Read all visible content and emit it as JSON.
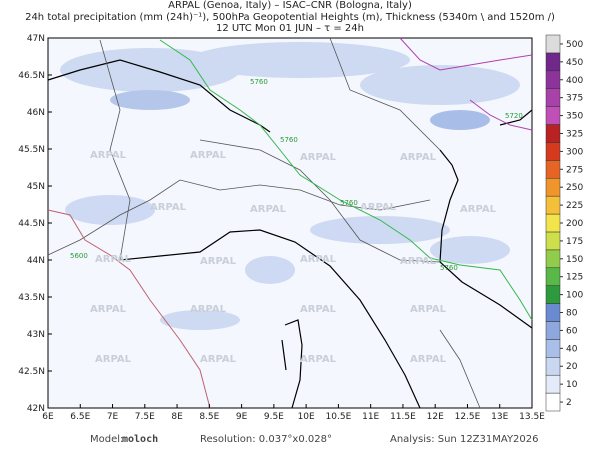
{
  "header": {
    "line1": "ARPAL (Genoa, Italy)  –  ISAC–CNR (Bologna, Italy)",
    "line2": "24h total precipitation (mm (24h)⁻¹), 500hPa Geopotential Heights (m), Thickness (5340m \\ and 1520m /)",
    "line3": "12 UTC Mon 01 JUN  –  τ = 24h"
  },
  "map": {
    "lonlim": [
      6,
      13.5
    ],
    "latlim": [
      42,
      47
    ],
    "lon_ticks": [
      {
        "value": 6,
        "label": "6E"
      },
      {
        "value": 6.5,
        "label": "6.5E"
      },
      {
        "value": 7,
        "label": "7E"
      },
      {
        "value": 7.5,
        "label": "7.5E"
      },
      {
        "value": 8,
        "label": "8E"
      },
      {
        "value": 8.5,
        "label": "8.5E"
      },
      {
        "value": 9,
        "label": "9E"
      },
      {
        "value": 9.5,
        "label": "9.5E"
      },
      {
        "value": 10,
        "label": "10E"
      },
      {
        "value": 10.5,
        "label": "10.5E"
      },
      {
        "value": 11,
        "label": "11E"
      },
      {
        "value": 11.5,
        "label": "11.5E"
      },
      {
        "value": 12,
        "label": "12E"
      },
      {
        "value": 12.5,
        "label": "12.5E"
      },
      {
        "value": 13,
        "label": "13E"
      },
      {
        "value": 13.5,
        "label": "13.5E"
      }
    ],
    "lat_ticks": [
      {
        "value": 42,
        "label": "42N"
      },
      {
        "value": 42.5,
        "label": "42.5N"
      },
      {
        "value": 43,
        "label": "43N"
      },
      {
        "value": 43.5,
        "label": "43.5N"
      },
      {
        "value": 44,
        "label": "44N"
      },
      {
        "value": 44.5,
        "label": "44.5N"
      },
      {
        "value": 45,
        "label": "45N"
      },
      {
        "value": 45.5,
        "label": "45.5N"
      },
      {
        "value": 46,
        "label": "46N"
      },
      {
        "value": 46.5,
        "label": "46.5N"
      },
      {
        "value": 47,
        "label": "47N"
      }
    ],
    "watermark": "ARPAL",
    "contour_labels": [
      "5760",
      "5760",
      "5760",
      "5760",
      "5720",
      "5600"
    ]
  },
  "colorbar": {
    "levels": [
      2,
      10,
      20,
      40,
      60,
      80,
      100,
      125,
      150,
      175,
      200,
      225,
      250,
      275,
      300,
      325,
      350,
      375,
      400,
      450,
      500
    ],
    "colors": [
      "#ffffff",
      "#e4ebf8",
      "#c9d7f1",
      "#aabfe8",
      "#8ea8df",
      "#6a8bd2",
      "#2e9a3e",
      "#58b848",
      "#92cc4c",
      "#cde04c",
      "#f2e44a",
      "#f4c03a",
      "#f0942c",
      "#e66424",
      "#d63a1e",
      "#b82222",
      "#c050b8",
      "#a842a8",
      "#8c349c",
      "#70288a",
      "#dcdcdc"
    ]
  },
  "footer": {
    "model_label": "Model:",
    "model": "moloch",
    "resolution": "Resolution: 0.037°x0.028°",
    "analysis": "Analysis: Sun 12Z31MAY2026"
  }
}
